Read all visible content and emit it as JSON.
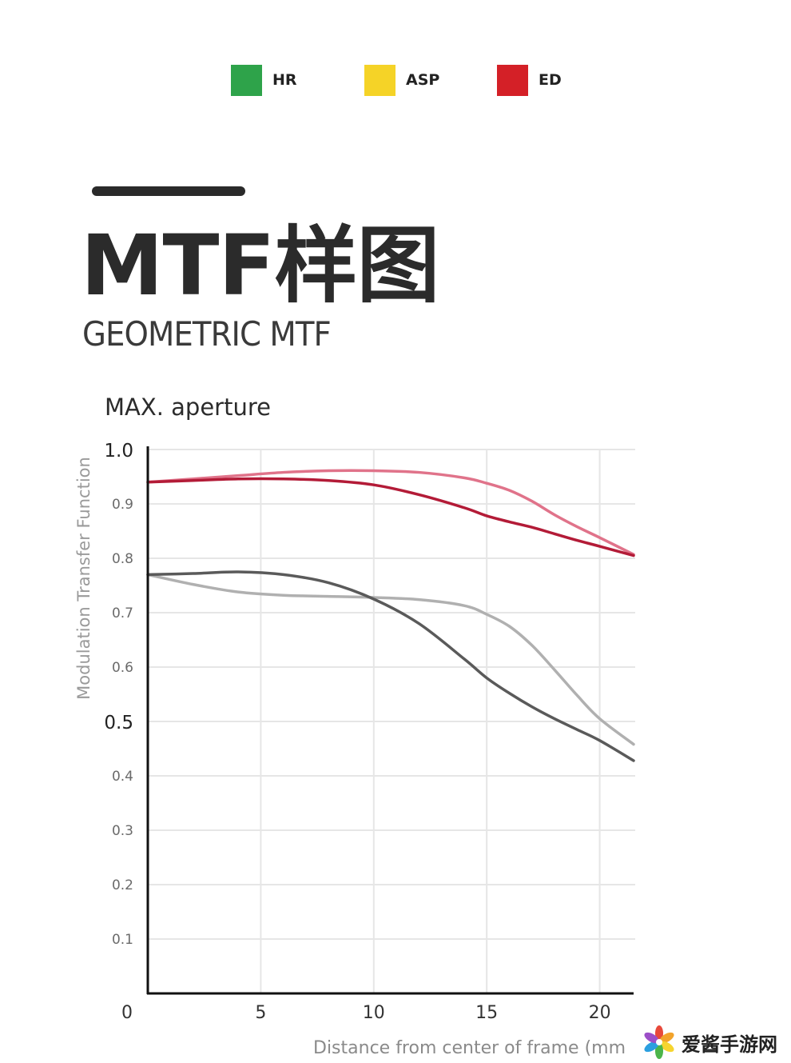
{
  "legend": [
    {
      "label": "HR",
      "color": "#2ea34a"
    },
    {
      "label": "ASP",
      "color": "#f5d327"
    },
    {
      "label": "ED",
      "color": "#d42027"
    }
  ],
  "page": {
    "title": "MTF样图",
    "subtitle": "GEOMETRIC MTF"
  },
  "watermark": {
    "text": "爱酱手游网"
  },
  "chart_data": {
    "type": "line",
    "title": "MAX. aperture",
    "xlabel": "Distance from center of frame (mm",
    "ylabel": "Modulation Transfer Function",
    "xlim": [
      0,
      21.5
    ],
    "ylim": [
      0,
      1.0
    ],
    "x_ticks": [
      0,
      5,
      10,
      15,
      20
    ],
    "y_ticks": [
      "0.1",
      "0.2",
      "0.3",
      "0.4",
      "0.5",
      "0.6",
      "0.7",
      "0.8",
      "0.9",
      "1.0"
    ],
    "grid": true,
    "series": [
      {
        "color": "#e0738a",
        "x": [
          0,
          2,
          4,
          6,
          8,
          10,
          12,
          14,
          15,
          16,
          17,
          18,
          19,
          20,
          21.5
        ],
        "y": [
          0.94,
          0.946,
          0.952,
          0.958,
          0.961,
          0.961,
          0.958,
          0.948,
          0.938,
          0.925,
          0.905,
          0.88,
          0.858,
          0.838,
          0.807
        ]
      },
      {
        "color": "#b31b37",
        "x": [
          0,
          2,
          4,
          6,
          8,
          10,
          12,
          14,
          15,
          16,
          17,
          18,
          19,
          20,
          21.5
        ],
        "y": [
          0.94,
          0.943,
          0.946,
          0.946,
          0.943,
          0.935,
          0.917,
          0.893,
          0.878,
          0.867,
          0.857,
          0.845,
          0.833,
          0.822,
          0.805
        ]
      },
      {
        "color": "#b0b0b0",
        "x": [
          0,
          2,
          4,
          6,
          8,
          10,
          12,
          14,
          15,
          16,
          17,
          18,
          19,
          20,
          21.5
        ],
        "y": [
          0.77,
          0.752,
          0.738,
          0.732,
          0.73,
          0.728,
          0.724,
          0.713,
          0.697,
          0.675,
          0.64,
          0.595,
          0.548,
          0.505,
          0.458
        ]
      },
      {
        "color": "#5a5a5a",
        "x": [
          0,
          2,
          4,
          6,
          8,
          10,
          12,
          14,
          15,
          16,
          17,
          18,
          19,
          20,
          21.5
        ],
        "y": [
          0.77,
          0.772,
          0.775,
          0.77,
          0.755,
          0.725,
          0.68,
          0.615,
          0.58,
          0.552,
          0.527,
          0.505,
          0.485,
          0.465,
          0.428
        ]
      }
    ]
  }
}
